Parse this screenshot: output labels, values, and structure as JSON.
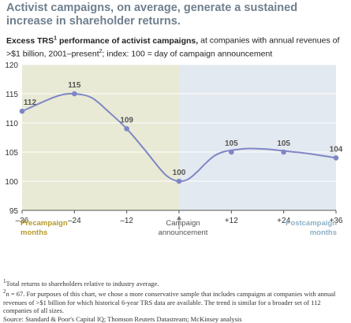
{
  "title": "Activist campaigns, on average, generate a sustained increase in shareholder returns.",
  "subtitle": {
    "bold": "Excess TRS",
    "bold_sup": "1",
    "bold2": " performance of activist campaigns,",
    "rest1": " at companies with annual revenues of >$1 billion, 2001–present",
    "rest_sup": "2",
    "rest2": "; index: 100 = day of campaign announcement"
  },
  "labels": {
    "pre": "Precampaign months",
    "announce": "Campaign announcement",
    "post": "Postcampaign months"
  },
  "footnotes": [
    {
      "mark": "1",
      "text": "Total returns to shareholders relative to industry average."
    },
    {
      "mark": "2",
      "text": "n = 67.  For purposes of this chart, we chose a more conservative sample that includes campaigns at companies with annual revenues of >$1 billion for which historical 6-year TRS data are available. The trend is similar for a broader set of 112 companies of all sizes."
    },
    {
      "mark": "",
      "text": "Source: Standard & Poor's Capital IQ; Thomson Reuters Datastream; McKinsey analysis"
    }
  ],
  "colors": {
    "pre_bg": "#e8ead5",
    "post_bg": "#e3e9f0",
    "line": "#7f86c6",
    "grid": "#ffffff"
  },
  "chart_data": {
    "type": "line",
    "x": [
      -36,
      -24,
      -12,
      0,
      12,
      24,
      36
    ],
    "x_tick_labels": [
      "–36",
      "–24",
      "–12",
      "",
      "+12",
      "+24",
      "+36"
    ],
    "y_ticks": [
      95,
      100,
      105,
      110,
      115,
      120
    ],
    "ylim": [
      95,
      120
    ],
    "xlim": [
      -36,
      36
    ],
    "series": [
      {
        "values": [
          112,
          115,
          109,
          100,
          105,
          105,
          104
        ],
        "data_labels": [
          "112",
          "115",
          "109",
          "100",
          "105",
          "105",
          "104"
        ]
      }
    ],
    "curve_x": [
      -36,
      -30,
      -27,
      -24,
      -20,
      -16,
      -12,
      -8,
      -4,
      -2,
      0,
      2,
      4,
      6,
      8,
      10,
      12,
      16,
      20,
      24,
      30,
      36
    ],
    "curve_y": [
      112,
      114,
      114.8,
      115,
      114.3,
      111.8,
      109,
      105.5,
      101.8,
      100.5,
      100,
      100.3,
      101.5,
      103,
      104.3,
      105,
      105.3,
      105.6,
      105.5,
      105.2,
      104.7,
      104
    ],
    "grid": true
  }
}
